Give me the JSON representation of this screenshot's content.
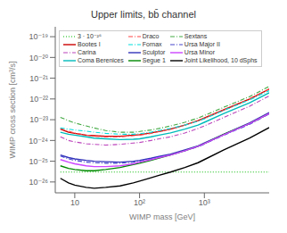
{
  "chart_data": {
    "type": "line",
    "title": "Upper limits, bb̄ channel",
    "x_label": "WIMP mass [GeV]",
    "y_label": "WIMP cross section [cm³/s]",
    "log": true,
    "grid": false,
    "legend": "upper left",
    "x": [
      6,
      8,
      10,
      15,
      20,
      30,
      50,
      80,
      100,
      150,
      200,
      300,
      500,
      800,
      1000,
      2000,
      5000,
      10000
    ],
    "xlim": [
      5,
      10000
    ],
    "xticks": [
      10,
      {
        "value": 100,
        "label": "10²"
      },
      {
        "value": 1000,
        "label": "10³"
      }
    ],
    "ylim": [
      3e-27,
      3e-19
    ],
    "yticks": [
      {
        "value": 1e-26,
        "label": "10⁻²⁶"
      },
      {
        "value": 1e-25,
        "label": "10⁻²⁵"
      },
      {
        "value": 1e-24,
        "label": "10⁻²⁴"
      },
      {
        "value": 1e-23,
        "label": "10⁻²³"
      },
      {
        "value": 1e-22,
        "label": "10⁻²²"
      },
      {
        "value": 1e-21,
        "label": "10⁻²¹"
      },
      {
        "value": 1e-20,
        "label": "10⁻²⁰"
      },
      {
        "value": 1e-19,
        "label": "10⁻¹⁹"
      }
    ],
    "series": [
      {
        "name": "3 · 10⁻²⁶",
        "color": "#00bb00",
        "line_style": "dotted",
        "values": [
          3e-26,
          3e-26,
          3e-26,
          3e-26,
          3e-26,
          3e-26,
          3e-26,
          3e-26,
          3e-26,
          3e-26,
          3e-26,
          3e-26,
          3e-26,
          3e-26,
          3e-26,
          3e-26,
          3e-26,
          3e-26
        ]
      },
      {
        "name": "Bootes I",
        "color": "#cc0000",
        "line_style": "solid",
        "values": [
          3.5e-24,
          2.5e-24,
          2.2e-24,
          1.8e-24,
          1.7e-24,
          1.6e-24,
          1.6e-24,
          1.8e-24,
          1.9e-24,
          2.3e-24,
          2.7e-24,
          3.5e-24,
          5.5e-24,
          9e-24,
          1.2e-23,
          3e-23,
          1e-22,
          3e-22
        ]
      },
      {
        "name": "Carina",
        "color": "#bb44bb",
        "line_style": "dashdot",
        "values": [
          1.5e-24,
          1e-24,
          8.5e-25,
          7e-25,
          6.5e-25,
          6e-25,
          6.5e-25,
          7.5e-25,
          8e-25,
          1e-24,
          1.2e-24,
          1.5e-24,
          2.3e-24,
          3.8e-24,
          5e-24,
          1.3e-23,
          4.5e-23,
          1.4e-22
        ]
      },
      {
        "name": "Coma Berenices",
        "color": "#00bbbb",
        "line_style": "solid",
        "values": [
          2.5e-24,
          2e-24,
          1.8e-24,
          1.5e-24,
          1.3e-24,
          1.2e-24,
          1.1e-24,
          1.15e-24,
          1.2e-24,
          1.5e-24,
          1.8e-24,
          2.3e-24,
          3.5e-24,
          5.5e-24,
          7.5e-24,
          2e-23,
          6.5e-23,
          2e-22
        ]
      },
      {
        "name": "Draco",
        "color": "#ff4444",
        "line_style": "dashdot",
        "values": [
          3.8e-24,
          2.8e-24,
          2.3e-24,
          1.8e-24,
          1.6e-24,
          1.5e-24,
          1.5e-24,
          1.7e-24,
          1.8e-24,
          2.2e-24,
          2.7e-24,
          3.5e-24,
          5.5e-24,
          9e-24,
          1.2e-23,
          3e-23,
          1e-22,
          3e-22
        ]
      },
      {
        "name": "Fornax",
        "color": "#00dddd",
        "line_style": "dashdot",
        "values": [
          4e-24,
          3.5e-24,
          3.2e-24,
          2.8e-24,
          2.5e-24,
          2.2e-24,
          2e-24,
          2e-24,
          2.1e-24,
          2.5e-24,
          3e-24,
          3.8e-24,
          5.5e-24,
          8.5e-24,
          1.1e-23,
          2.8e-23,
          9e-23,
          2.5e-22
        ]
      },
      {
        "name": "Sculptor",
        "color": "#3333bb",
        "line_style": "solid",
        "values": [
          2e-25,
          1.5e-25,
          1.3e-25,
          1.1e-25,
          1e-25,
          9.5e-26,
          9e-26,
          1e-25,
          1.1e-25,
          1.4e-25,
          1.7e-25,
          2.2e-25,
          3.5e-25,
          5.5e-25,
          7.5e-25,
          2e-24,
          7e-24,
          2.2e-23
        ]
      },
      {
        "name": "Segue 1",
        "color": "#008800",
        "line_style": "solid",
        "values": [
          6e-26,
          4.5e-26,
          4e-26,
          3.5e-26,
          3.5e-26,
          4e-26,
          5e-26,
          7e-26,
          8e-26,
          1.1e-25,
          1.4e-25,
          2e-25,
          3.2e-25,
          5.2e-25,
          7e-25,
          2e-24,
          6.5e-24,
          2e-23
        ]
      },
      {
        "name": "Sextans",
        "color": "#44aa44",
        "line_style": "dashdot",
        "values": [
          1.3e-23,
          9e-24,
          7e-24,
          5e-24,
          4e-24,
          3e-24,
          2.5e-24,
          2.5e-24,
          2.7e-24,
          3.2e-24,
          3.8e-24,
          5e-24,
          7.5e-24,
          1.2e-23,
          1.6e-23,
          4e-23,
          1.3e-22,
          4e-22
        ]
      },
      {
        "name": "Ursa Major II",
        "color": "#4444cc",
        "line_style": "dashdot",
        "values": [
          1.8e-25,
          1.3e-25,
          1.1e-25,
          9e-26,
          8.5e-26,
          8e-26,
          8e-26,
          9e-26,
          1e-25,
          1.3e-25,
          1.6e-25,
          2e-25,
          3.2e-25,
          5e-25,
          6.8e-25,
          1.8e-24,
          6e-24,
          1.9e-23
        ]
      },
      {
        "name": "Ursa Minor",
        "color": "#cc44ff",
        "line_style": "solid",
        "values": [
          1.2e-25,
          9e-26,
          7.5e-26,
          6e-26,
          5.5e-26,
          5.5e-26,
          6e-26,
          7.5e-26,
          9e-26,
          1.2e-25,
          1.5e-25,
          2e-25,
          3.2e-25,
          5.2e-25,
          7e-25,
          1.9e-24,
          6.5e-24,
          2e-23
        ]
      },
      {
        "name": "Joint Likelihood, 10 dSphs",
        "color": "#000000",
        "line_style": "solid",
        "values": [
          1.5e-26,
          9e-27,
          7e-27,
          5.5e-27,
          5e-27,
          5.5e-27,
          6.5e-27,
          9e-27,
          1.1e-26,
          1.6e-26,
          2.1e-26,
          3e-26,
          5e-26,
          8.5e-26,
          1.2e-25,
          3.5e-25,
          1.3e-24,
          4.2e-24
        ]
      }
    ]
  }
}
